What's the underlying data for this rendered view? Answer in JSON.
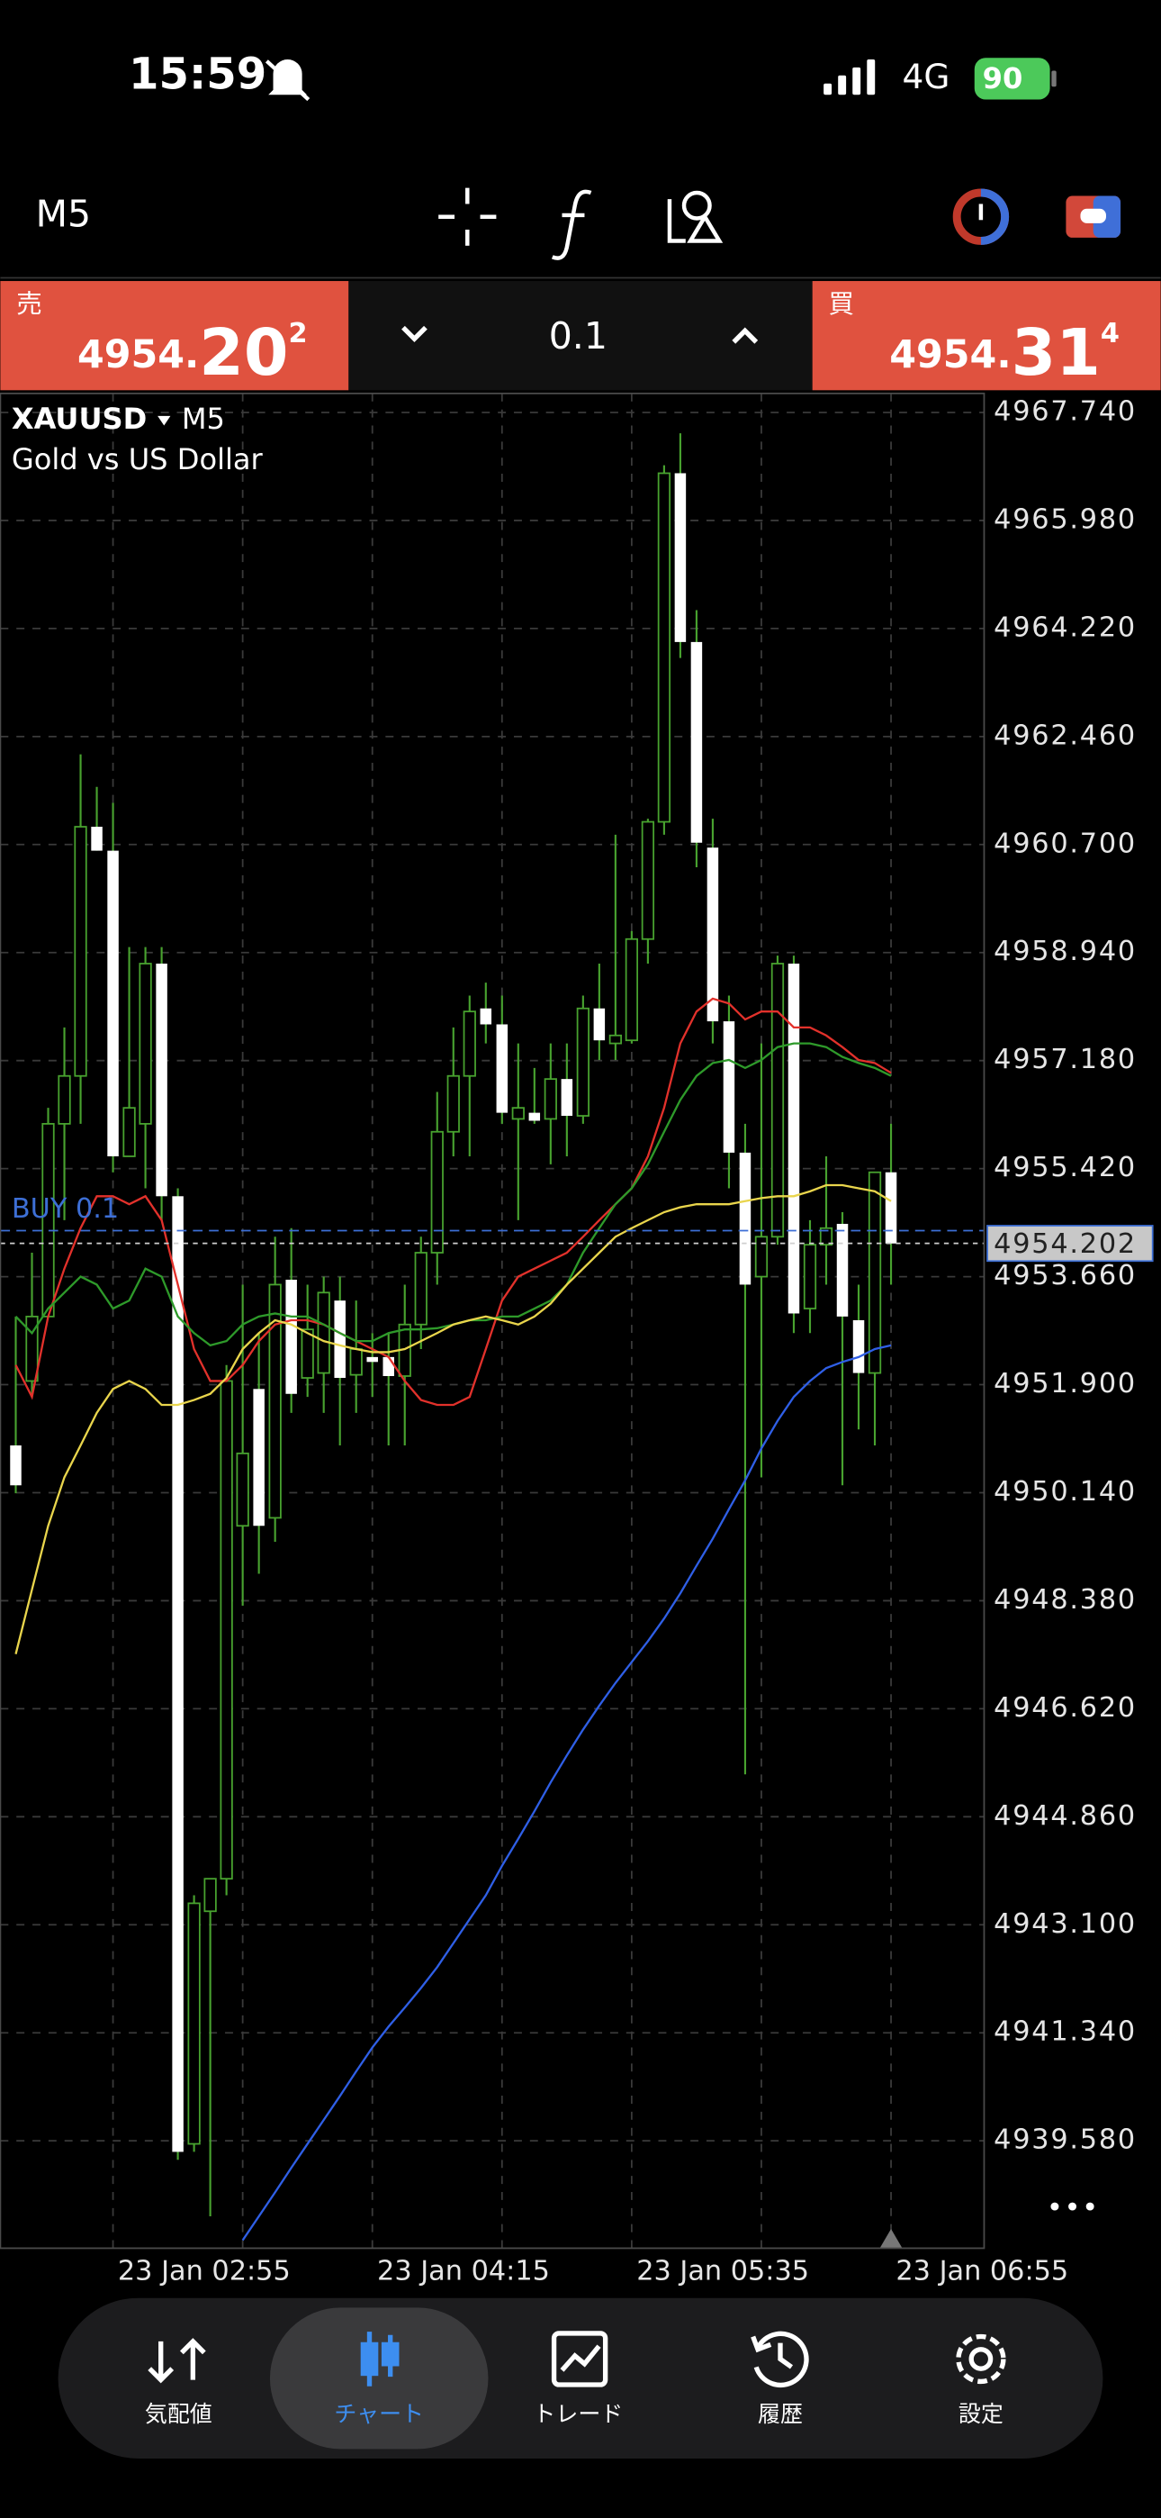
{
  "status_bar": {
    "time": "15:59",
    "network": "4G",
    "battery": "90"
  },
  "toolbar": {
    "timeframe": "M5"
  },
  "trade_panel": {
    "sell": {
      "label": "売",
      "price_main": "4954.",
      "price_big": "20",
      "price_sup": "2"
    },
    "volume": "0.1",
    "buy": {
      "label": "買",
      "price_main": "4954.",
      "price_big": "31",
      "price_sup": "4"
    }
  },
  "chart_data": {
    "type": "candlestick",
    "symbol": "XAUUSD",
    "timeframe": "M5",
    "description": "Gold vs US Dollar",
    "categories": [
      null,
      null,
      null,
      null,
      null,
      null,
      "23 Jan 02:55",
      null,
      null,
      null,
      null,
      null,
      null,
      null,
      null,
      null,
      null,
      null,
      null,
      null,
      null,
      null,
      "23 Jan 04:15",
      null,
      null,
      null,
      null,
      null,
      null,
      null,
      null,
      null,
      null,
      null,
      null,
      null,
      null,
      null,
      "23 Jan 05:35",
      null,
      null,
      null,
      null,
      null,
      null,
      null,
      null,
      null,
      null,
      null,
      null,
      null,
      null,
      null,
      "23 Jan 06:55"
    ],
    "open": [
      4950.91,
      4951.96,
      4953.01,
      4956.15,
      4956.93,
      4960.99,
      4960.6,
      4955.62,
      4956.15,
      4958.76,
      4954.97,
      4939.53,
      4943.32,
      4943.85,
      4949.6,
      4951.83,
      4949.73,
      4953.61,
      4952.01,
      4952.09,
      4953.27,
      4952.06,
      4952.35,
      4952.35,
      4952.04,
      4952.88,
      4954.05,
      4956.02,
      4956.93,
      4958.03,
      4957.77,
      4956.23,
      4956.33,
      4956.23,
      4956.88,
      4956.28,
      4958.03,
      4957.46,
      4957.51,
      4959.16,
      4961.07,
      4966.75,
      4964.0,
      4960.65,
      4957.82,
      4955.68,
      4953.66,
      4954.31,
      4958.76,
      4953.14,
      4954.18,
      4954.52,
      4952.95,
      4952.09,
      4955.36
    ],
    "high": [
      4953.01,
      4954.05,
      4956.41,
      4957.72,
      4962.17,
      4961.64,
      4961.38,
      4959.03,
      4959.03,
      4959.03,
      4955.1,
      4943.58,
      4943.85,
      4952.22,
      4953.53,
      4952.74,
      4954.31,
      4954.45,
      4953.53,
      4953.66,
      4953.66,
      4953.27,
      4952.74,
      4952.74,
      4953.53,
      4954.31,
      4956.67,
      4957.72,
      4958.24,
      4958.45,
      4958.24,
      4957.46,
      4957.06,
      4957.46,
      4957.46,
      4958.24,
      4958.76,
      4960.86,
      4959.29,
      4961.12,
      4966.88,
      4967.4,
      4964.52,
      4961.12,
      4958.24,
      4956.15,
      4957.46,
      4958.89,
      4958.89,
      4954.58,
      4955.62,
      4954.71,
      4953.53,
      4955.36,
      4956.15
    ],
    "low": [
      4950.13,
      4951.7,
      4953.01,
      4954.58,
      4956.15,
      4960.6,
      4955.36,
      4955.62,
      4955.1,
      4954.58,
      4939.27,
      4939.4,
      4938.35,
      4943.58,
      4948.3,
      4948.82,
      4949.34,
      4951.44,
      4951.7,
      4951.44,
      4950.91,
      4951.44,
      4951.7,
      4950.91,
      4950.91,
      4952.48,
      4953.53,
      4955.62,
      4955.62,
      4957.46,
      4956.15,
      4954.58,
      4956.15,
      4955.49,
      4955.62,
      4956.15,
      4957.19,
      4957.19,
      4957.46,
      4958.76,
      4960.86,
      4963.74,
      4960.33,
      4957.46,
      4955.1,
      4945.55,
      4950.39,
      4954.18,
      4952.74,
      4952.74,
      4953.53,
      4950.26,
      4951.17,
      4950.91,
      4953.53
    ],
    "close": [
      4950.26,
      4953.01,
      4956.15,
      4956.93,
      4960.99,
      4960.6,
      4955.62,
      4956.41,
      4958.76,
      4954.97,
      4939.4,
      4943.45,
      4943.85,
      4951.96,
      4950.78,
      4949.6,
      4953.53,
      4951.75,
      4952.8,
      4953.4,
      4952.01,
      4952.48,
      4952.27,
      4952.04,
      4952.88,
      4954.05,
      4956.02,
      4956.93,
      4957.98,
      4957.77,
      4956.33,
      4956.41,
      4956.2,
      4956.88,
      4956.28,
      4958.03,
      4957.51,
      4957.59,
      4959.16,
      4961.07,
      4966.75,
      4964.0,
      4960.73,
      4957.82,
      4955.68,
      4953.53,
      4954.31,
      4958.76,
      4953.06,
      4954.18,
      4954.45,
      4953.01,
      4952.09,
      4955.36,
      4954.2
    ],
    "bull_color": "#48a22f",
    "bear_color": "#ffffff",
    "series": [
      {
        "color": "#e2312b",
        "values": [
          4952.22,
          4951.7,
          4953.01,
          4953.79,
          4954.45,
          4954.97,
          4954.97,
          4954.84,
          4954.97,
          4954.58,
          4953.53,
          4952.48,
          4951.96,
          4951.96,
          4952.22,
          4952.61,
          4952.88,
          4952.95,
          4952.95,
          4952.88,
          4952.74,
          4952.61,
          4952.48,
          4952.35,
          4951.96,
          4951.65,
          4951.57,
          4951.57,
          4951.7,
          4952.48,
          4953.27,
          4953.66,
          4953.79,
          4953.92,
          4954.05,
          4954.31,
          4954.58,
          4954.84,
          4955.1,
          4955.62,
          4956.41,
          4957.46,
          4957.98,
          4958.19,
          4958.11,
          4957.85,
          4957.98,
          4957.98,
          4957.72,
          4957.72,
          4957.59,
          4957.4,
          4957.19,
          4957.14,
          4956.98
        ]
      },
      {
        "color": "#2e9a2a",
        "values": [
          4953.01,
          4952.74,
          4953.14,
          4953.4,
          4953.66,
          4953.53,
          4953.14,
          4953.27,
          4953.79,
          4953.66,
          4953.01,
          4952.74,
          4952.54,
          4952.61,
          4952.88,
          4953.01,
          4953.06,
          4953.01,
          4953.01,
          4952.88,
          4952.74,
          4952.61,
          4952.61,
          4952.74,
          4952.8,
          4952.8,
          4952.82,
          4952.88,
          4952.95,
          4952.95,
          4953.01,
          4953.01,
          4953.14,
          4953.27,
          4953.53,
          4954.05,
          4954.45,
          4954.84,
          4955.1,
          4955.49,
          4956.02,
          4956.54,
          4956.93,
          4957.14,
          4957.19,
          4957.06,
          4957.19,
          4957.4,
          4957.46,
          4957.46,
          4957.4,
          4957.24,
          4957.14,
          4957.06,
          4956.93
        ]
      },
      {
        "color": "#e9d54c",
        "values": [
          4947.51,
          4948.56,
          4949.6,
          4950.39,
          4950.91,
          4951.44,
          4951.83,
          4951.96,
          4951.83,
          4951.57,
          4951.57,
          4951.65,
          4951.75,
          4952.01,
          4952.48,
          4952.74,
          4952.95,
          4952.88,
          4952.74,
          4952.61,
          4952.54,
          4952.48,
          4952.43,
          4952.43,
          4952.48,
          4952.61,
          4952.74,
          4952.88,
          4952.95,
          4953.01,
          4952.95,
          4952.88,
          4953.01,
          4953.22,
          4953.53,
          4953.79,
          4954.05,
          4954.31,
          4954.45,
          4954.58,
          4954.71,
          4954.79,
          4954.84,
          4954.84,
          4954.84,
          4954.89,
          4954.94,
          4954.97,
          4954.97,
          4955.05,
          4955.15,
          4955.15,
          4955.1,
          4955.05,
          4954.89
        ]
      },
      {
        "color": "#2f5fe6",
        "values": [
          null,
          null,
          null,
          null,
          null,
          null,
          null,
          null,
          null,
          null,
          null,
          null,
          null,
          null,
          4937.96,
          4938.35,
          4938.74,
          4939.14,
          4939.53,
          4939.92,
          4940.31,
          4940.71,
          4941.1,
          4941.44,
          4941.75,
          4942.07,
          4942.41,
          4942.8,
          4943.19,
          4943.58,
          4944.06,
          4944.5,
          4944.95,
          4945.42,
          4945.86,
          4946.28,
          4946.67,
          4947.04,
          4947.38,
          4947.72,
          4948.09,
          4948.5,
          4948.95,
          4949.39,
          4949.87,
          4950.34,
          4950.86,
          4951.31,
          4951.7,
          4951.96,
          4952.17,
          4952.27,
          4952.35,
          4952.48,
          4952.54
        ]
      }
    ],
    "ylim": [
      4937.83,
      4968.05
    ],
    "yticks": [
      {
        "value": 4939.58,
        "label": "4939.580"
      },
      {
        "value": 4941.34,
        "label": "4941.340"
      },
      {
        "value": 4943.1,
        "label": "4943.100"
      },
      {
        "value": 4944.86,
        "label": "4944.860"
      },
      {
        "value": 4946.62,
        "label": "4946.620"
      },
      {
        "value": 4948.38,
        "label": "4948.380"
      },
      {
        "value": 4950.14,
        "label": "4950.140"
      },
      {
        "value": 4951.9,
        "label": "4951.900"
      },
      {
        "value": 4953.66,
        "label": "4953.660"
      },
      {
        "value": 4955.42,
        "label": "4955.420"
      },
      {
        "value": 4957.18,
        "label": "4957.180"
      },
      {
        "value": 4958.94,
        "label": "4958.940"
      },
      {
        "value": 4960.7,
        "label": "4960.700"
      },
      {
        "value": 4962.46,
        "label": "4962.460"
      },
      {
        "value": 4964.22,
        "label": "4964.220"
      },
      {
        "value": 4965.98,
        "label": "4965.980"
      },
      {
        "value": 4967.74,
        "label": "4967.740"
      }
    ],
    "grid": true,
    "order_line": {
      "label": "BUY 0.1",
      "value": 4954.41,
      "color": "#3d6fd6"
    },
    "current_price": 4954.202
  },
  "nav": {
    "items": [
      "気配値",
      "チャート",
      "トレード",
      "履歴",
      "設定"
    ],
    "active": 1
  }
}
